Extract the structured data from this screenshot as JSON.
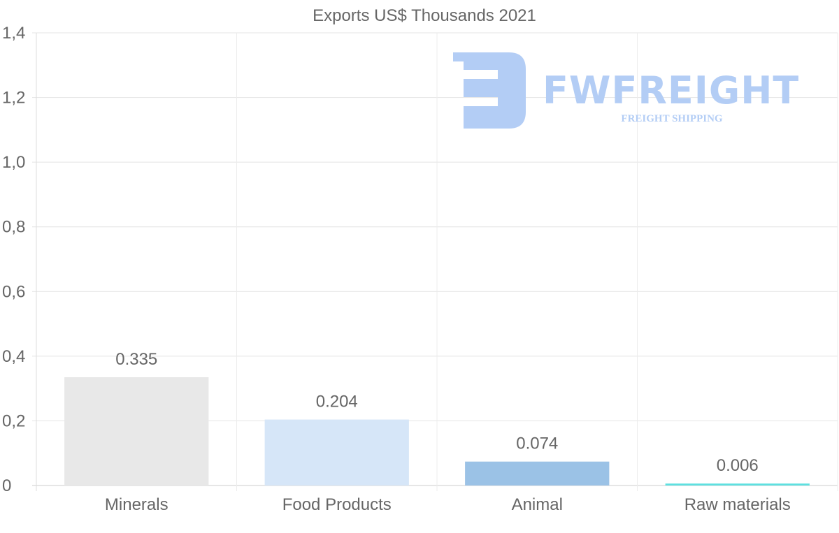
{
  "chart_data": {
    "type": "bar",
    "title": "Exports US$ Thousands 2021",
    "categories": [
      "Minerals",
      "Food Products",
      "Animal",
      "Raw materials"
    ],
    "values": [
      0.335,
      0.204,
      0.074,
      0.006
    ],
    "value_labels": [
      "0.335",
      "0.204",
      "0.074",
      "0.006"
    ],
    "bar_colors": [
      "#e8e8e8",
      "#d6e6f8",
      "#9bc2e6",
      "#5ee0e0"
    ],
    "ylim": [
      0,
      1.4
    ],
    "yticks": [
      {
        "value": 0,
        "label": "0"
      },
      {
        "value": 0.2,
        "label": "0,2"
      },
      {
        "value": 0.4,
        "label": "0,4"
      },
      {
        "value": 0.6,
        "label": "0,6"
      },
      {
        "value": 0.8,
        "label": "0,8"
      },
      {
        "value": 1.0,
        "label": "1,0"
      },
      {
        "value": 1.2,
        "label": "1,2"
      },
      {
        "value": 1.4,
        "label": "1,4"
      }
    ],
    "xlabel": "",
    "ylabel": "",
    "grid": true,
    "legend": "none"
  },
  "watermark": {
    "name": "FWFREIGHT",
    "tagline": "FREIGHT SHIPPING",
    "color": "#b3cdf5"
  }
}
